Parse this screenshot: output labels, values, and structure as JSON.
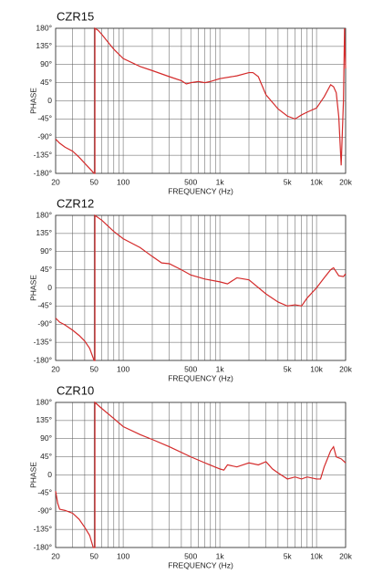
{
  "chart_data": [
    {
      "type": "line",
      "title": "CZR15",
      "x_label": "FREQUENCY (Hz)",
      "y_label": "PHASE",
      "log_x": true,
      "xlim": [
        20,
        20000
      ],
      "ylim": [
        -180,
        180
      ],
      "xticks": [
        20,
        50,
        100,
        500,
        {
          "value": 1000,
          "label": "1k"
        },
        {
          "value": 5000,
          "label": "5k"
        },
        {
          "value": 10000,
          "label": "10k"
        },
        {
          "value": 20000,
          "label": "20k"
        }
      ],
      "xgrid": [
        30,
        40,
        60,
        70,
        80,
        90,
        200,
        300,
        400,
        600,
        700,
        800,
        900,
        2000,
        3000,
        4000,
        6000,
        7000,
        8000,
        9000
      ],
      "yticks": [
        {
          "value": 180,
          "label": "180°"
        },
        {
          "value": 135,
          "label": "135°"
        },
        {
          "value": 90,
          "label": "90°"
        },
        {
          "value": 45,
          "label": "45°"
        },
        0,
        {
          "value": -45,
          "label": "-45°"
        },
        {
          "value": -90,
          "label": "-90°"
        },
        {
          "value": -135,
          "label": "-135°"
        },
        {
          "value": -180,
          "label": "-180°"
        }
      ],
      "series": [
        {
          "color": "#d42a2a",
          "x": [
            20,
            22,
            25,
            30,
            35,
            40,
            45,
            50,
            51,
            51,
            55,
            60,
            70,
            80,
            100,
            150,
            200,
            300,
            400,
            450,
            500,
            600,
            700,
            800,
            1000,
            1500,
            2000,
            2200,
            2500,
            3000,
            4000,
            5000,
            6000,
            7000,
            8000,
            10000,
            12000,
            14000,
            15000,
            16000,
            17000,
            18000,
            19000,
            19500,
            20000
          ],
          "values": [
            -95,
            -105,
            -115,
            -125,
            -140,
            -155,
            -168,
            -180,
            -180,
            180,
            175,
            165,
            145,
            128,
            105,
            85,
            75,
            60,
            50,
            42,
            45,
            48,
            45,
            48,
            55,
            62,
            70,
            70,
            60,
            15,
            -20,
            -38,
            -45,
            -35,
            -28,
            -18,
            10,
            40,
            35,
            20,
            -40,
            -160,
            0,
            180,
            80
          ]
        }
      ]
    },
    {
      "type": "line",
      "title": "CZR12",
      "x_label": "FREQUENCY (Hz)",
      "y_label": "PHASE",
      "log_x": true,
      "xlim": [
        20,
        20000
      ],
      "ylim": [
        -180,
        180
      ],
      "xticks": [
        20,
        50,
        100,
        500,
        {
          "value": 1000,
          "label": "1k"
        },
        {
          "value": 5000,
          "label": "5k"
        },
        {
          "value": 10000,
          "label": "10k"
        },
        {
          "value": 20000,
          "label": "20k"
        }
      ],
      "xgrid": [
        30,
        40,
        60,
        70,
        80,
        90,
        200,
        300,
        400,
        600,
        700,
        800,
        900,
        2000,
        3000,
        4000,
        6000,
        7000,
        8000,
        9000
      ],
      "yticks": [
        {
          "value": 180,
          "label": "180°"
        },
        {
          "value": 135,
          "label": "135°"
        },
        {
          "value": 90,
          "label": "90°"
        },
        {
          "value": 45,
          "label": "45°"
        },
        0,
        {
          "value": -45,
          "label": "-45°"
        },
        {
          "value": -90,
          "label": "-90°"
        },
        {
          "value": -135,
          "label": "-135°"
        },
        {
          "value": -180,
          "label": "-180°"
        }
      ],
      "series": [
        {
          "color": "#d42a2a",
          "x": [
            20,
            22,
            25,
            30,
            35,
            40,
            45,
            50,
            51,
            51,
            60,
            80,
            100,
            150,
            200,
            250,
            300,
            400,
            500,
            700,
            1000,
            1200,
            1500,
            2000,
            3000,
            4000,
            5000,
            6000,
            7000,
            8000,
            10000,
            12000,
            14000,
            15000,
            17000,
            19000,
            20000
          ],
          "values": [
            -75,
            -85,
            -92,
            -105,
            -118,
            -132,
            -150,
            -180,
            -180,
            180,
            168,
            140,
            122,
            100,
            78,
            62,
            60,
            45,
            32,
            22,
            15,
            10,
            25,
            20,
            -15,
            -35,
            -45,
            -42,
            -45,
            -25,
            0,
            25,
            45,
            50,
            30,
            28,
            35
          ]
        }
      ]
    },
    {
      "type": "line",
      "title": "CZR10",
      "x_label": "FREQUENCY (Hz)",
      "y_label": "PHASE",
      "log_x": true,
      "xlim": [
        20,
        20000
      ],
      "ylim": [
        -180,
        180
      ],
      "xticks": [
        20,
        50,
        100,
        500,
        {
          "value": 1000,
          "label": "1k"
        },
        {
          "value": 5000,
          "label": "5k"
        },
        {
          "value": 10000,
          "label": "10k"
        },
        {
          "value": 20000,
          "label": "20k"
        }
      ],
      "xgrid": [
        30,
        40,
        60,
        70,
        80,
        90,
        200,
        300,
        400,
        600,
        700,
        800,
        900,
        2000,
        3000,
        4000,
        6000,
        7000,
        8000,
        9000
      ],
      "yticks": [
        {
          "value": 180,
          "label": "180°"
        },
        {
          "value": 135,
          "label": "135°"
        },
        {
          "value": 90,
          "label": "90°"
        },
        {
          "value": 45,
          "label": "45°"
        },
        0,
        {
          "value": -45,
          "label": "-45°"
        },
        {
          "value": -90,
          "label": "-90°"
        },
        {
          "value": -135,
          "label": "-135°"
        },
        {
          "value": -180,
          "label": "-180°"
        }
      ],
      "series": [
        {
          "color": "#d42a2a",
          "x": [
            20,
            21,
            22,
            25,
            30,
            35,
            40,
            45,
            49,
            51,
            51,
            60,
            80,
            100,
            150,
            200,
            300,
            500,
            700,
            1000,
            1100,
            1200,
            1500,
            2000,
            2500,
            3000,
            3500,
            4000,
            5000,
            6000,
            7000,
            8000,
            10000,
            11000,
            12000,
            14000,
            15000,
            16000,
            18000,
            20000
          ],
          "values": [
            -40,
            -70,
            -85,
            -88,
            -95,
            -110,
            -130,
            -150,
            -180,
            -180,
            180,
            165,
            140,
            120,
            100,
            88,
            70,
            45,
            30,
            15,
            12,
            25,
            20,
            30,
            25,
            33,
            15,
            5,
            -10,
            -5,
            -10,
            -5,
            -10,
            -10,
            20,
            60,
            70,
            45,
            40,
            30
          ]
        }
      ]
    }
  ]
}
